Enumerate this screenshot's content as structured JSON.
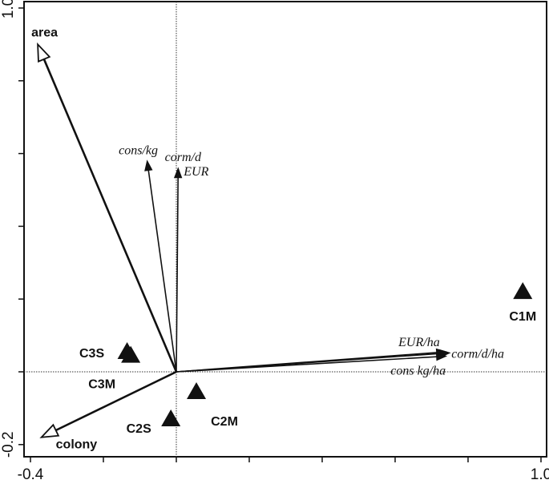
{
  "chart_data": {
    "type": "ordination-biplot",
    "title": "",
    "xlabel": "",
    "ylabel": "",
    "xlim": [
      -0.4,
      1.0
    ],
    "ylim": [
      -0.2,
      1.0
    ],
    "origin": [
      0,
      0
    ],
    "x_ticks": [
      -0.4,
      -0.2,
      0,
      0.2,
      0.4,
      0.6,
      0.8,
      1.0
    ],
    "y_ticks": [
      -0.2,
      0,
      0.2,
      0.4,
      0.6,
      0.8,
      1.0
    ],
    "x_tick_labels": [
      {
        "value": -0.4,
        "label": "-0.4"
      },
      {
        "value": 1.0,
        "label": "1.0"
      }
    ],
    "y_tick_labels": [
      {
        "value": -0.2,
        "label": "-0.2"
      },
      {
        "value": 1.0,
        "label": "1.0"
      }
    ],
    "grid": false,
    "arrows": [
      {
        "label": "area",
        "x": -0.38,
        "y": 0.9,
        "kind": "supplementary"
      },
      {
        "label": "colony",
        "x": -0.37,
        "y": -0.18,
        "kind": "supplementary"
      },
      {
        "label": "cons/kg",
        "x": -0.08,
        "y": 0.58,
        "kind": "environmental"
      },
      {
        "label": "corm/d",
        "x": 0.005,
        "y": 0.56,
        "kind": "environmental"
      },
      {
        "label": "EUR",
        "x": 0.005,
        "y": 0.56,
        "kind": "environmental"
      },
      {
        "label": "EUR/ha",
        "x": 0.74,
        "y": 0.055,
        "kind": "environmental"
      },
      {
        "label": "corm/d/ha",
        "x": 0.75,
        "y": 0.052,
        "kind": "environmental"
      },
      {
        "label": "cons kg/ha",
        "x": 0.74,
        "y": 0.043,
        "kind": "environmental"
      }
    ],
    "points": [
      {
        "label": "C1M",
        "x": 0.95,
        "y": 0.22
      },
      {
        "label": "C2M",
        "x": 0.055,
        "y": -0.055
      },
      {
        "label": "C2S",
        "x": -0.015,
        "y": -0.13
      },
      {
        "label": "C3S",
        "x": -0.135,
        "y": 0.055
      },
      {
        "label": "C3M",
        "x": -0.125,
        "y": 0.045
      }
    ]
  }
}
